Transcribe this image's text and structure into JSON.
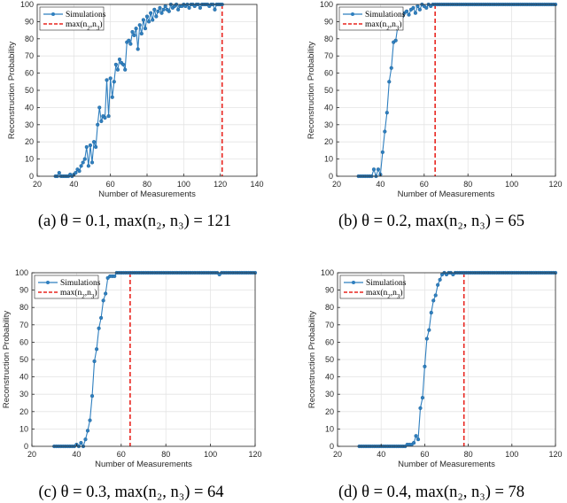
{
  "colors": {
    "series": "#2f7fbf",
    "threshold": "#e8251f",
    "grid": "#e4e4e4",
    "axis": "#262626"
  },
  "chart_data": [
    {
      "type": "line",
      "caption": "(a)  θ = 0.1,  max(n₂, n₃) = 121",
      "xlabel": "Number of Measurements",
      "ylabel": "Reconstruction Probability",
      "xlim": [
        20,
        140
      ],
      "ylim": [
        0,
        100
      ],
      "xticks": [
        20,
        40,
        60,
        80,
        100,
        120,
        140
      ],
      "yticks": [
        0,
        10,
        20,
        30,
        40,
        50,
        60,
        70,
        80,
        90,
        100
      ],
      "grid": true,
      "legend": {
        "position": "top-left",
        "entries": [
          "Simulations",
          "max(n2,n3)"
        ]
      },
      "threshold_x": 121,
      "series": [
        {
          "name": "Simulations",
          "x": [
            30,
            31,
            32,
            33,
            34,
            35,
            36,
            37,
            38,
            39,
            40,
            41,
            42,
            43,
            44,
            45,
            46,
            47,
            48,
            49,
            50,
            51,
            52,
            53,
            54,
            55,
            56,
            57,
            58,
            59,
            60,
            61,
            62,
            63,
            64,
            65,
            66,
            67,
            68,
            69,
            70,
            71,
            72,
            73,
            74,
            75,
            76,
            77,
            78,
            79,
            80,
            81,
            82,
            83,
            84,
            85,
            86,
            87,
            88,
            89,
            90,
            91,
            92,
            93,
            94,
            95,
            96,
            97,
            98,
            99,
            100,
            101,
            102,
            103,
            104,
            105,
            106,
            107,
            108,
            109,
            110,
            111,
            112,
            113,
            114,
            115,
            116,
            117,
            118,
            119,
            120,
            121
          ],
          "values": [
            0,
            0,
            2,
            0,
            0,
            0,
            0,
            0,
            1,
            0,
            1,
            2,
            4,
            3,
            6,
            8,
            10,
            17,
            6,
            18,
            8,
            20,
            17,
            30,
            40,
            32,
            35,
            34,
            56,
            35,
            57,
            46,
            55,
            65,
            62,
            68,
            66,
            65,
            62,
            78,
            79,
            77,
            84,
            82,
            86,
            74,
            88,
            83,
            91,
            86,
            93,
            90,
            95,
            91,
            97,
            93,
            96,
            98,
            95,
            97,
            99,
            97,
            96,
            100,
            98,
            99,
            100,
            97,
            99,
            99,
            100,
            99,
            100,
            98,
            100,
            100,
            99,
            100,
            100,
            98,
            100,
            100,
            100,
            100,
            99,
            100,
            100,
            97,
            100,
            100,
            100,
            100
          ]
        }
      ]
    },
    {
      "type": "line",
      "caption": "(b)  θ = 0.2,  max(n₂, n₃) = 65",
      "xlabel": "Number of Measurements",
      "ylabel": "Reconstruction Probability",
      "xlim": [
        20,
        120
      ],
      "ylim": [
        0,
        100
      ],
      "xticks": [
        20,
        40,
        60,
        80,
        100,
        120
      ],
      "yticks": [
        0,
        10,
        20,
        30,
        40,
        50,
        60,
        70,
        80,
        90,
        100
      ],
      "grid": true,
      "legend": {
        "position": "top-left",
        "entries": [
          "Simulations",
          "max(n2,n3)"
        ]
      },
      "threshold_x": 65,
      "series": [
        {
          "name": "Simulations",
          "x": [
            30,
            31,
            32,
            33,
            34,
            35,
            36,
            37,
            38,
            39,
            40,
            41,
            42,
            43,
            44,
            45,
            46,
            47,
            48,
            49,
            50,
            51,
            52,
            53,
            54,
            55,
            56,
            57,
            58,
            59,
            60,
            61,
            62,
            63,
            64,
            65,
            66,
            67,
            68,
            69,
            70,
            71,
            72,
            73,
            74,
            75,
            76,
            77,
            78,
            79,
            80,
            81,
            82,
            83,
            84,
            85,
            86,
            87,
            88,
            89,
            90,
            91,
            92,
            93,
            94,
            95,
            96,
            97,
            98,
            99,
            100,
            101,
            102,
            103,
            104,
            105,
            106,
            107,
            108,
            109,
            110,
            111,
            112,
            113,
            114,
            115,
            116,
            117,
            118,
            119,
            120
          ],
          "values": [
            0,
            0,
            0,
            0,
            0,
            0,
            0,
            4,
            0,
            4,
            1,
            14,
            26,
            37,
            55,
            63,
            78,
            79,
            88,
            91,
            93,
            95,
            96,
            94,
            97,
            98,
            95,
            99,
            97,
            100,
            99,
            98,
            100,
            99,
            100,
            100,
            100,
            100,
            100,
            100,
            100,
            100,
            100,
            100,
            100,
            100,
            100,
            100,
            100,
            100,
            100,
            100,
            100,
            100,
            100,
            100,
            100,
            100,
            100,
            100,
            100,
            100,
            100,
            100,
            100,
            100,
            100,
            100,
            100,
            100,
            100,
            100,
            100,
            100,
            100,
            100,
            100,
            100,
            100,
            100,
            100,
            100,
            100,
            100,
            100,
            100,
            100,
            100,
            100,
            100,
            100
          ]
        }
      ]
    },
    {
      "type": "line",
      "caption": "(c)  θ = 0.3,  max(n₂, n₃) = 64",
      "xlabel": "Number of Measurements",
      "ylabel": "Reconstruction Probability",
      "xlim": [
        20,
        120
      ],
      "ylim": [
        0,
        100
      ],
      "xticks": [
        20,
        40,
        60,
        80,
        100,
        120
      ],
      "yticks": [
        0,
        10,
        20,
        30,
        40,
        50,
        60,
        70,
        80,
        90,
        100
      ],
      "grid": true,
      "legend": {
        "position": "top-left",
        "entries": [
          "Simulations",
          "max(n2,n3)"
        ]
      },
      "threshold_x": 64,
      "series": [
        {
          "name": "Simulations",
          "x": [
            30,
            31,
            32,
            33,
            34,
            35,
            36,
            37,
            38,
            39,
            40,
            41,
            42,
            43,
            44,
            45,
            46,
            47,
            48,
            49,
            50,
            51,
            52,
            53,
            54,
            55,
            56,
            57,
            58,
            59,
            60,
            61,
            62,
            63,
            64,
            65,
            66,
            67,
            68,
            69,
            70,
            71,
            72,
            73,
            74,
            75,
            76,
            77,
            78,
            79,
            80,
            81,
            82,
            83,
            84,
            85,
            86,
            87,
            88,
            89,
            90,
            91,
            92,
            93,
            94,
            95,
            96,
            97,
            98,
            99,
            100,
            101,
            102,
            103,
            104,
            105,
            106,
            107,
            108,
            109,
            110,
            111,
            112,
            113,
            114,
            115,
            116,
            117,
            118,
            119,
            120
          ],
          "values": [
            0,
            0,
            0,
            0,
            0,
            0,
            0,
            0,
            0,
            0,
            1,
            0,
            2,
            0,
            4,
            9,
            15,
            29,
            49,
            56,
            68,
            74,
            84,
            88,
            97,
            98,
            98,
            98,
            100,
            100,
            100,
            100,
            100,
            100,
            100,
            100,
            100,
            100,
            100,
            100,
            100,
            100,
            100,
            100,
            100,
            100,
            100,
            100,
            100,
            100,
            100,
            100,
            100,
            100,
            100,
            100,
            100,
            100,
            100,
            100,
            100,
            100,
            100,
            100,
            100,
            100,
            100,
            100,
            100,
            100,
            100,
            100,
            100,
            100,
            99,
            100,
            100,
            100,
            100,
            100,
            100,
            100,
            100,
            100,
            100,
            100,
            100,
            100,
            100,
            100,
            100
          ]
        }
      ]
    },
    {
      "type": "line",
      "caption": "(d)  θ = 0.4,  max(n₂, n₃) = 78",
      "xlabel": "Number of Measurements",
      "ylabel": "Reconstruction Probability",
      "xlim": [
        20,
        120
      ],
      "ylim": [
        0,
        100
      ],
      "xticks": [
        20,
        40,
        60,
        80,
        100,
        120
      ],
      "yticks": [
        0,
        10,
        20,
        30,
        40,
        50,
        60,
        70,
        80,
        90,
        100
      ],
      "grid": true,
      "legend": {
        "position": "top-left",
        "entries": [
          "Simulations",
          "max(n2,n3)"
        ]
      },
      "threshold_x": 78,
      "series": [
        {
          "name": "Simulations",
          "x": [
            30,
            31,
            32,
            33,
            34,
            35,
            36,
            37,
            38,
            39,
            40,
            41,
            42,
            43,
            44,
            45,
            46,
            47,
            48,
            49,
            50,
            51,
            52,
            53,
            54,
            55,
            56,
            57,
            58,
            59,
            60,
            61,
            62,
            63,
            64,
            65,
            66,
            67,
            68,
            69,
            70,
            71,
            72,
            73,
            74,
            75,
            76,
            77,
            78,
            79,
            80,
            81,
            82,
            83,
            84,
            85,
            86,
            87,
            88,
            89,
            90,
            91,
            92,
            93,
            94,
            95,
            96,
            97,
            98,
            99,
            100,
            101,
            102,
            103,
            104,
            105,
            106,
            107,
            108,
            109,
            110,
            111,
            112,
            113,
            114,
            115,
            116,
            117,
            118,
            119,
            120
          ],
          "values": [
            0,
            0,
            0,
            0,
            0,
            0,
            0,
            0,
            0,
            0,
            0,
            0,
            0,
            0,
            0,
            0,
            0,
            0,
            0,
            0,
            0,
            0,
            1,
            1,
            1,
            2,
            6,
            4,
            22,
            28,
            46,
            62,
            67,
            77,
            84,
            87,
            93,
            96,
            99,
            100,
            99,
            100,
            100,
            99,
            100,
            100,
            100,
            100,
            100,
            100,
            100,
            100,
            100,
            100,
            100,
            100,
            100,
            100,
            100,
            100,
            100,
            100,
            100,
            100,
            100,
            100,
            100,
            100,
            100,
            100,
            100,
            100,
            100,
            100,
            100,
            100,
            100,
            100,
            100,
            100,
            100,
            100,
            100,
            100,
            100,
            100,
            100,
            100,
            100,
            100,
            100
          ]
        }
      ]
    }
  ]
}
